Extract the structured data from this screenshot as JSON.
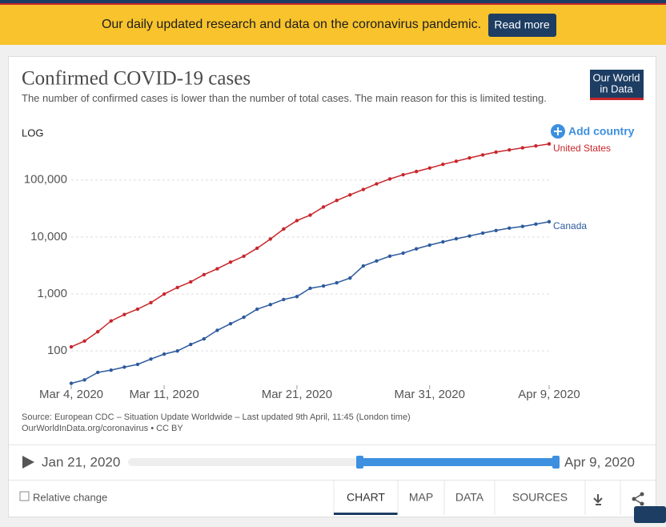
{
  "banner": {
    "text": "Our daily updated research and data on the coronavirus pandemic.",
    "button": "Read more"
  },
  "logo": {
    "line1": "Our World",
    "line2": "in Data"
  },
  "add_country": "Add country",
  "chart_data": {
    "type": "line",
    "title": "Confirmed COVID-19 cases",
    "subtitle": "The number of confirmed cases is lower than the number of total cases. The main reason for this is limited testing.",
    "scale_label": "LOG",
    "log_scale": true,
    "grid": true,
    "x": [
      "2020-03-04",
      "2020-03-05",
      "2020-03-06",
      "2020-03-07",
      "2020-03-08",
      "2020-03-09",
      "2020-03-10",
      "2020-03-11",
      "2020-03-12",
      "2020-03-13",
      "2020-03-14",
      "2020-03-15",
      "2020-03-16",
      "2020-03-17",
      "2020-03-18",
      "2020-03-19",
      "2020-03-20",
      "2020-03-21",
      "2020-03-22",
      "2020-03-23",
      "2020-03-24",
      "2020-03-25",
      "2020-03-26",
      "2020-03-27",
      "2020-03-28",
      "2020-03-29",
      "2020-03-30",
      "2020-03-31",
      "2020-04-01",
      "2020-04-02",
      "2020-04-03",
      "2020-04-04",
      "2020-04-05",
      "2020-04-06",
      "2020-04-07",
      "2020-04-08",
      "2020-04-09"
    ],
    "xlim": [
      "2020-03-04",
      "2020-04-09"
    ],
    "xticks": [
      {
        "value": "2020-03-04",
        "label": "Mar 4, 2020"
      },
      {
        "value": "2020-03-11",
        "label": "Mar 11, 2020"
      },
      {
        "value": "2020-03-21",
        "label": "Mar 21, 2020"
      },
      {
        "value": "2020-03-31",
        "label": "Mar 31, 2020"
      },
      {
        "value": "2020-04-09",
        "label": "Apr 9, 2020"
      }
    ],
    "ylim": [
      25,
      500000
    ],
    "yticks": [
      100,
      {
        "value": 1000,
        "label": "1,000"
      },
      {
        "value": 10000,
        "label": "10,000"
      },
      {
        "value": 100000,
        "label": "100,000"
      }
    ],
    "series": [
      {
        "name": "United States",
        "color": "#c8262c",
        "values": [
          118,
          149,
          217,
          336,
          435,
          541,
          704,
          994,
          1301,
          1630,
          2183,
          2770,
          3613,
          4596,
          6344,
          9197,
          13779,
          19367,
          24192,
          33592,
          43781,
          54856,
          68211,
          85435,
          104126,
          123578,
          140886,
          161807,
          188172,
          213372,
          243453,
          275586,
          308850,
          337072,
          366614,
          396223,
          429052
        ]
      },
      {
        "name": "Canada",
        "color": "#2d5a9e",
        "values": [
          27,
          31,
          42,
          46,
          52,
          58,
          72,
          88,
          100,
          130,
          163,
          230,
          300,
          390,
          540,
          650,
          800,
          900,
          1256,
          1380,
          1570,
          1900,
          3100,
          3800,
          4600,
          5200,
          6200,
          7200,
          8200,
          9300,
          10400,
          11700,
          13000,
          14300,
          15300,
          16800,
          18500
        ]
      }
    ],
    "source": "Source: European CDC – Situation Update Worldwide – Last updated 9th April, 11:45 (London time)",
    "source_url": "OurWorldInData.org/coronavirus • CC BY"
  },
  "timeline": {
    "start": "Jan 21, 2020",
    "end": "Apr 9, 2020"
  },
  "controls": {
    "checkbox": "Relative change",
    "tabs": [
      "CHART",
      "MAP",
      "DATA",
      "SOURCES"
    ]
  }
}
